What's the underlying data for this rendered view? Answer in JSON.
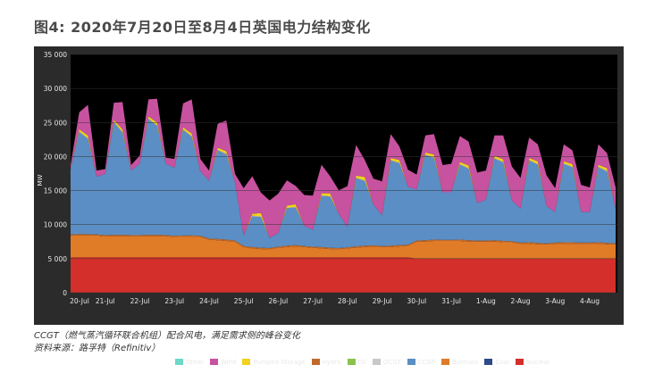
{
  "title": "图4: 2020年7月20日至8月4日英国电力结构变化",
  "caption_line1": "CCGT（燃气蒸汽循环联合机组）配合风电，满足需求侧的峰谷变化",
  "caption_line2": "资料来源：路孚特（Refinitiv）",
  "chart_data": {
    "type": "area",
    "stacked": true,
    "ylabel": "MW",
    "ylim": [
      0,
      35000
    ],
    "yticks": [
      0,
      5000,
      10000,
      15000,
      20000,
      25000,
      30000,
      35000
    ],
    "ytick_labels": [
      "0",
      "5 000",
      "10 000",
      "15 000",
      "20 000",
      "25 000",
      "30 000",
      "35 000"
    ],
    "x_tick_labels": [
      "20-Jul",
      "21-Jul",
      "22-Jul",
      "23-Jul",
      "24-Jul",
      "25-Jul",
      "26-Jul",
      "27-Jul",
      "28-Jul",
      "29-Jul",
      "30-Jul",
      "31-Jul",
      "1-Aug",
      "2-Aug",
      "3-Aug",
      "4-Aug"
    ],
    "legend_position": "bottom",
    "points_per_day": 4,
    "series": [
      {
        "name": "Nuclear",
        "color": "#d42f2a",
        "values": [
          5200,
          5200,
          5200,
          5200,
          5200,
          5200,
          5200,
          5200,
          5200,
          5200,
          5200,
          5200,
          5200,
          5200,
          5200,
          5200,
          5200,
          5200,
          5200,
          5200,
          5200,
          5200,
          5200,
          5200,
          5200,
          5200,
          5200,
          5200,
          5200,
          5200,
          5200,
          5200,
          5200,
          5200,
          5200,
          5200,
          5200,
          5200,
          5200,
          5200,
          5000,
          5000,
          5000,
          5000,
          5000,
          5000,
          5000,
          5000,
          5000,
          5000,
          5000,
          5000,
          5000,
          5000,
          5000,
          5000,
          5000,
          5000,
          5000,
          5000,
          5000,
          5000,
          5000,
          5000
        ]
      },
      {
        "name": "Coal",
        "color": "#2d4a8a",
        "values": [
          0,
          0,
          0,
          0,
          0,
          0,
          0,
          0,
          0,
          0,
          0,
          0,
          0,
          0,
          0,
          0,
          0,
          0,
          0,
          0,
          0,
          0,
          0,
          0,
          0,
          0,
          0,
          0,
          0,
          0,
          0,
          0,
          0,
          0,
          0,
          0,
          0,
          0,
          0,
          0,
          0,
          0,
          0,
          0,
          0,
          0,
          0,
          0,
          0,
          0,
          0,
          0,
          0,
          0,
          0,
          0,
          0,
          0,
          0,
          0,
          0,
          0,
          0,
          0
        ]
      },
      {
        "name": "Biomass",
        "color": "#e07b28",
        "values": [
          3200,
          3200,
          3200,
          3200,
          3100,
          3100,
          3100,
          3100,
          3100,
          3100,
          3100,
          3100,
          3000,
          3000,
          3000,
          3000,
          2600,
          2500,
          2400,
          2300,
          1500,
          1300,
          1200,
          1200,
          1400,
          1500,
          1600,
          1500,
          1400,
          1300,
          1200,
          1200,
          1300,
          1400,
          1500,
          1600,
          1500,
          1500,
          1600,
          1700,
          2500,
          2500,
          2600,
          2600,
          2600,
          2600,
          2500,
          2500,
          2500,
          2500,
          2400,
          2400,
          2200,
          2200,
          2100,
          2100,
          2200,
          2200,
          2200,
          2200,
          2200,
          2200,
          2100,
          2100
        ]
      },
      {
        "name": "Hydro",
        "color": "#c16a2a",
        "values": [
          150,
          200,
          200,
          150,
          150,
          200,
          200,
          150,
          150,
          200,
          200,
          150,
          150,
          200,
          200,
          150,
          150,
          200,
          200,
          150,
          150,
          200,
          200,
          150,
          150,
          200,
          200,
          150,
          150,
          200,
          200,
          150,
          150,
          200,
          200,
          150,
          150,
          200,
          200,
          150,
          150,
          200,
          200,
          150,
          150,
          200,
          200,
          150,
          150,
          200,
          200,
          150,
          150,
          200,
          200,
          150,
          150,
          200,
          200,
          150,
          150,
          200,
          200,
          150
        ]
      },
      {
        "name": "CCGT",
        "color": "#5b8ec4",
        "values": [
          9500,
          15000,
          14000,
          8500,
          9000,
          16500,
          15000,
          9500,
          10500,
          17000,
          16000,
          10500,
          10000,
          15500,
          14500,
          9500,
          8500,
          13000,
          12500,
          8500,
          1500,
          4500,
          4500,
          1500,
          2000,
          5500,
          5500,
          3000,
          2500,
          7500,
          7500,
          5000,
          3000,
          10000,
          9500,
          6000,
          4500,
          12500,
          12000,
          8500,
          7500,
          12500,
          12000,
          7000,
          7000,
          11000,
          10500,
          5500,
          6000,
          12000,
          11500,
          6000,
          5000,
          12000,
          11500,
          5500,
          4500,
          11500,
          11000,
          4500,
          4500,
          11000,
          10500,
          5000
        ]
      },
      {
        "name": "OCGT",
        "color": "#c8c8c8",
        "values": [
          0,
          100,
          100,
          0,
          0,
          100,
          100,
          0,
          0,
          100,
          100,
          0,
          0,
          100,
          100,
          0,
          0,
          100,
          100,
          0,
          0,
          100,
          100,
          0,
          0,
          100,
          100,
          0,
          0,
          100,
          100,
          0,
          0,
          100,
          100,
          0,
          0,
          100,
          100,
          0,
          0,
          100,
          100,
          0,
          0,
          100,
          100,
          0,
          0,
          100,
          100,
          0,
          0,
          100,
          100,
          0,
          0,
          100,
          100,
          0,
          0,
          100,
          100,
          0
        ]
      },
      {
        "name": "Oil",
        "color": "#8ac24a",
        "values": [
          0,
          0,
          0,
          0,
          0,
          0,
          0,
          0,
          0,
          0,
          0,
          0,
          0,
          0,
          0,
          0,
          0,
          0,
          0,
          0,
          0,
          0,
          0,
          0,
          0,
          0,
          0,
          0,
          0,
          0,
          0,
          0,
          0,
          0,
          0,
          0,
          0,
          0,
          0,
          0,
          0,
          0,
          0,
          0,
          0,
          0,
          0,
          0,
          0,
          0,
          0,
          0,
          0,
          0,
          0,
          0,
          0,
          0,
          0,
          0,
          0,
          0,
          0,
          0
        ]
      },
      {
        "name": "Pumped Storage",
        "color": "#f2d21c",
        "values": [
          0,
          300,
          400,
          0,
          0,
          300,
          400,
          0,
          0,
          300,
          400,
          0,
          0,
          300,
          400,
          0,
          0,
          300,
          400,
          0,
          0,
          300,
          500,
          0,
          0,
          300,
          400,
          0,
          0,
          300,
          400,
          0,
          0,
          300,
          500,
          0,
          0,
          300,
          400,
          0,
          0,
          300,
          400,
          0,
          0,
          300,
          400,
          0,
          0,
          300,
          400,
          0,
          0,
          300,
          400,
          0,
          0,
          300,
          400,
          0,
          0,
          300,
          400,
          0
        ]
      },
      {
        "name": "Wind",
        "color": "#c752a0",
        "values": [
          700,
          2500,
          4500,
          900,
          700,
          2500,
          4000,
          800,
          1200,
          2500,
          3500,
          900,
          1300,
          3500,
          5000,
          1800,
          1500,
          3500,
          4500,
          1300,
          7000,
          5500,
          3000,
          5500,
          5800,
          3700,
          2700,
          4500,
          5000,
          4200,
          2500,
          3500,
          6000,
          4500,
          2500,
          3800,
          5000,
          3500,
          2000,
          2500,
          2200,
          2500,
          3000,
          4000,
          4200,
          3800,
          3500,
          4500,
          4300,
          3000,
          3500,
          5000,
          4500,
          3000,
          2500,
          4500,
          3500,
          2500,
          2000,
          4000,
          3600,
          3000,
          2200,
          3200
        ]
      },
      {
        "name": "Other",
        "color": "#6fd8c6",
        "values": [
          0,
          0,
          0,
          0,
          0,
          0,
          0,
          0,
          0,
          0,
          0,
          0,
          0,
          0,
          0,
          0,
          0,
          0,
          0,
          0,
          0,
          0,
          0,
          0,
          0,
          0,
          0,
          0,
          0,
          0,
          0,
          0,
          0,
          0,
          0,
          0,
          0,
          0,
          0,
          0,
          0,
          0,
          0,
          0,
          0,
          0,
          0,
          0,
          0,
          0,
          0,
          0,
          0,
          0,
          0,
          0,
          0,
          0,
          0,
          0,
          0,
          0,
          0,
          0
        ]
      }
    ],
    "legend": [
      {
        "name": "Other",
        "color": "#6fd8c6"
      },
      {
        "name": "Wind",
        "color": "#c752a0"
      },
      {
        "name": "Pumped Storage",
        "color": "#f2d21c"
      },
      {
        "name": "Hydro",
        "color": "#c16a2a"
      },
      {
        "name": "Oil",
        "color": "#8ac24a"
      },
      {
        "name": "OCGT",
        "color": "#c8c8c8"
      },
      {
        "name": "CCGT",
        "color": "#5b8ec4"
      },
      {
        "name": "Biomass",
        "color": "#e07b28"
      },
      {
        "name": "Coal",
        "color": "#2d4a8a"
      },
      {
        "name": "Nuclear",
        "color": "#d42f2a"
      }
    ],
    "plot_background": "#000000",
    "frame_background": "#2b2b2b"
  }
}
